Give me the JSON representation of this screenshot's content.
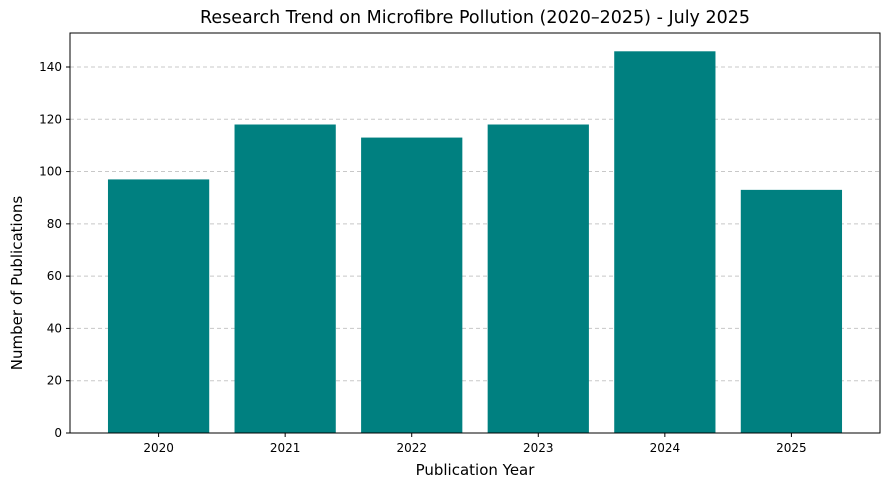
{
  "chart_data": {
    "type": "bar",
    "title": "Research Trend on Microfibre Pollution (2020–2025) - July 2025",
    "xlabel": "Publication Year",
    "ylabel": "Number of Publications",
    "categories": [
      "2020",
      "2021",
      "2022",
      "2023",
      "2024",
      "2025"
    ],
    "values": [
      97,
      118,
      113,
      118,
      146,
      93
    ],
    "ylim": [
      0,
      153
    ],
    "yticks": [
      0,
      20,
      40,
      60,
      80,
      100,
      120,
      140
    ],
    "grid": "y-dashed",
    "legend": "none",
    "bar_color": "#008080",
    "grid_color": "#c8c8c8"
  }
}
